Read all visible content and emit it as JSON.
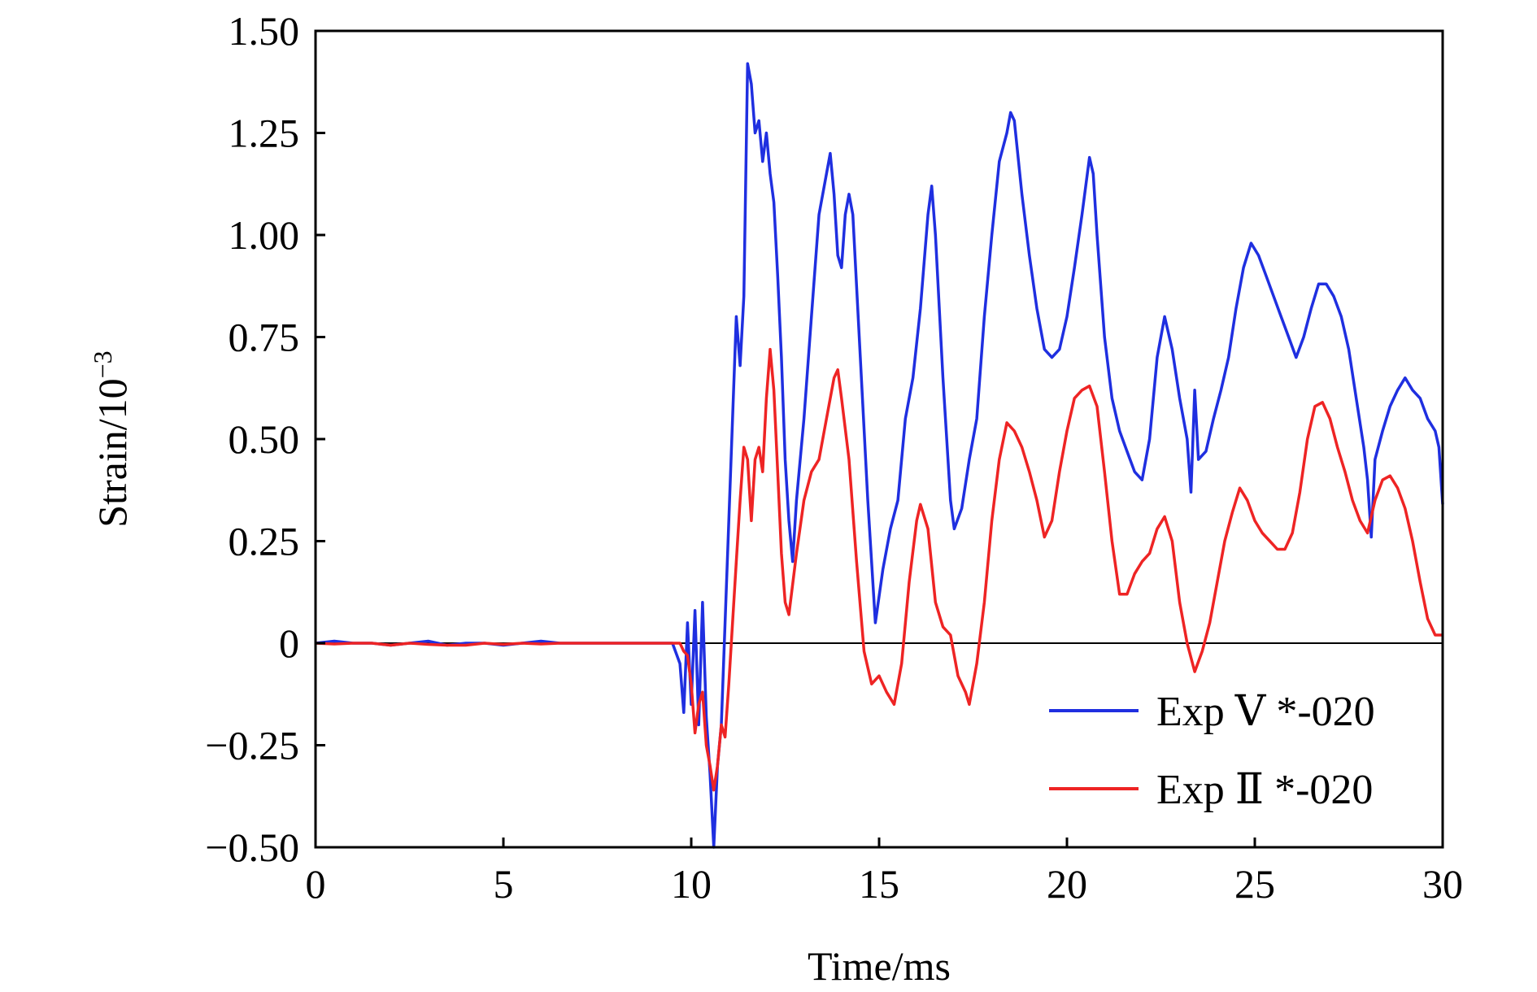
{
  "chart_data": {
    "type": "line",
    "title": "",
    "xlabel": "Time/ms",
    "ylabel": "Strain/10",
    "ylabel_exponent": "−3",
    "xlim": [
      0,
      30
    ],
    "ylim": [
      -0.5,
      1.5
    ],
    "x_ticks": [
      0,
      5,
      10,
      15,
      20,
      25,
      30
    ],
    "x_tick_labels": [
      "0",
      "5",
      "10",
      "15",
      "20",
      "25",
      "30"
    ],
    "y_ticks": [
      -0.5,
      -0.25,
      0,
      0.25,
      0.5,
      0.75,
      1.0,
      1.25,
      1.5
    ],
    "y_tick_labels": [
      "−0.50",
      "−0.25",
      "0",
      "0.25",
      "0.50",
      "0.75",
      "1.00",
      "1.25",
      "1.50"
    ],
    "grid": false,
    "legend_position": "bottom-right",
    "series": [
      {
        "name": "Exp Ⅴ *-020",
        "color": "#1f2fe0",
        "points": [
          [
            0,
            0
          ],
          [
            0.5,
            0.005
          ],
          [
            1,
            0
          ],
          [
            1.5,
            0
          ],
          [
            2,
            -0.005
          ],
          [
            2.5,
            0
          ],
          [
            3,
            0.005
          ],
          [
            3.5,
            -0.005
          ],
          [
            4,
            0
          ],
          [
            4.5,
            0
          ],
          [
            5,
            -0.005
          ],
          [
            5.5,
            0
          ],
          [
            6,
            0.005
          ],
          [
            6.5,
            0
          ],
          [
            7,
            0
          ],
          [
            7.5,
            0
          ],
          [
            8,
            0
          ],
          [
            8.5,
            0
          ],
          [
            9,
            0
          ],
          [
            9.5,
            0
          ],
          [
            9.7,
            -0.05
          ],
          [
            9.8,
            -0.17
          ],
          [
            9.9,
            0.05
          ],
          [
            10.0,
            -0.15
          ],
          [
            10.1,
            0.08
          ],
          [
            10.2,
            -0.2
          ],
          [
            10.3,
            0.1
          ],
          [
            10.4,
            -0.18
          ],
          [
            10.5,
            -0.32
          ],
          [
            10.6,
            -0.5
          ],
          [
            10.7,
            -0.3
          ],
          [
            10.8,
            -0.2
          ],
          [
            10.9,
            0.05
          ],
          [
            11.0,
            0.3
          ],
          [
            11.1,
            0.55
          ],
          [
            11.2,
            0.8
          ],
          [
            11.3,
            0.68
          ],
          [
            11.4,
            0.85
          ],
          [
            11.5,
            1.42
          ],
          [
            11.6,
            1.37
          ],
          [
            11.7,
            1.25
          ],
          [
            11.8,
            1.28
          ],
          [
            11.9,
            1.18
          ],
          [
            12.0,
            1.25
          ],
          [
            12.1,
            1.15
          ],
          [
            12.2,
            1.08
          ],
          [
            12.3,
            0.9
          ],
          [
            12.4,
            0.7
          ],
          [
            12.5,
            0.45
          ],
          [
            12.6,
            0.3
          ],
          [
            12.7,
            0.2
          ],
          [
            12.8,
            0.35
          ],
          [
            13.0,
            0.55
          ],
          [
            13.2,
            0.8
          ],
          [
            13.4,
            1.05
          ],
          [
            13.6,
            1.15
          ],
          [
            13.7,
            1.2
          ],
          [
            13.8,
            1.1
          ],
          [
            13.9,
            0.95
          ],
          [
            14.0,
            0.92
          ],
          [
            14.1,
            1.05
          ],
          [
            14.2,
            1.1
          ],
          [
            14.3,
            1.05
          ],
          [
            14.5,
            0.7
          ],
          [
            14.7,
            0.35
          ],
          [
            14.9,
            0.05
          ],
          [
            15.1,
            0.18
          ],
          [
            15.3,
            0.28
          ],
          [
            15.5,
            0.35
          ],
          [
            15.7,
            0.55
          ],
          [
            15.9,
            0.65
          ],
          [
            16.1,
            0.82
          ],
          [
            16.3,
            1.05
          ],
          [
            16.4,
            1.12
          ],
          [
            16.5,
            1.0
          ],
          [
            16.7,
            0.65
          ],
          [
            16.9,
            0.35
          ],
          [
            17.0,
            0.28
          ],
          [
            17.2,
            0.33
          ],
          [
            17.4,
            0.45
          ],
          [
            17.6,
            0.55
          ],
          [
            17.8,
            0.8
          ],
          [
            18.0,
            1.0
          ],
          [
            18.2,
            1.18
          ],
          [
            18.4,
            1.25
          ],
          [
            18.5,
            1.3
          ],
          [
            18.6,
            1.28
          ],
          [
            18.8,
            1.1
          ],
          [
            19.0,
            0.95
          ],
          [
            19.2,
            0.82
          ],
          [
            19.4,
            0.72
          ],
          [
            19.6,
            0.7
          ],
          [
            19.8,
            0.72
          ],
          [
            20.0,
            0.8
          ],
          [
            20.2,
            0.92
          ],
          [
            20.4,
            1.05
          ],
          [
            20.6,
            1.19
          ],
          [
            20.7,
            1.15
          ],
          [
            20.8,
            1.0
          ],
          [
            21.0,
            0.75
          ],
          [
            21.2,
            0.6
          ],
          [
            21.4,
            0.52
          ],
          [
            21.6,
            0.47
          ],
          [
            21.8,
            0.42
          ],
          [
            22.0,
            0.4
          ],
          [
            22.2,
            0.5
          ],
          [
            22.4,
            0.7
          ],
          [
            22.6,
            0.8
          ],
          [
            22.8,
            0.72
          ],
          [
            23.0,
            0.6
          ],
          [
            23.2,
            0.5
          ],
          [
            23.3,
            0.37
          ],
          [
            23.4,
            0.62
          ],
          [
            23.5,
            0.45
          ],
          [
            23.7,
            0.47
          ],
          [
            23.9,
            0.55
          ],
          [
            24.1,
            0.62
          ],
          [
            24.3,
            0.7
          ],
          [
            24.5,
            0.82
          ],
          [
            24.7,
            0.92
          ],
          [
            24.9,
            0.98
          ],
          [
            25.1,
            0.95
          ],
          [
            25.3,
            0.9
          ],
          [
            25.5,
            0.85
          ],
          [
            25.7,
            0.8
          ],
          [
            25.9,
            0.75
          ],
          [
            26.1,
            0.7
          ],
          [
            26.3,
            0.75
          ],
          [
            26.5,
            0.82
          ],
          [
            26.7,
            0.88
          ],
          [
            26.9,
            0.88
          ],
          [
            27.1,
            0.85
          ],
          [
            27.3,
            0.8
          ],
          [
            27.5,
            0.72
          ],
          [
            27.7,
            0.6
          ],
          [
            27.9,
            0.48
          ],
          [
            28.0,
            0.4
          ],
          [
            28.1,
            0.26
          ],
          [
            28.2,
            0.45
          ],
          [
            28.4,
            0.52
          ],
          [
            28.6,
            0.58
          ],
          [
            28.8,
            0.62
          ],
          [
            29.0,
            0.65
          ],
          [
            29.2,
            0.62
          ],
          [
            29.4,
            0.6
          ],
          [
            29.6,
            0.55
          ],
          [
            29.8,
            0.52
          ],
          [
            29.9,
            0.48
          ],
          [
            30.0,
            0.34
          ]
        ]
      },
      {
        "name": "Exp Ⅱ *-020",
        "color": "#ee2424",
        "points": [
          [
            0,
            0
          ],
          [
            0.5,
            -0.002
          ],
          [
            1,
            0
          ],
          [
            1.5,
            0
          ],
          [
            2,
            -0.005
          ],
          [
            2.5,
            0
          ],
          [
            3,
            -0.003
          ],
          [
            3.5,
            -0.005
          ],
          [
            4,
            -0.005
          ],
          [
            4.5,
            0
          ],
          [
            5,
            -0.003
          ],
          [
            5.5,
            0
          ],
          [
            6,
            -0.002
          ],
          [
            6.5,
            0
          ],
          [
            7,
            0
          ],
          [
            7.5,
            0
          ],
          [
            8,
            0
          ],
          [
            8.5,
            0
          ],
          [
            9,
            0
          ],
          [
            9.5,
            0
          ],
          [
            9.7,
            0
          ],
          [
            9.8,
            -0.02
          ],
          [
            9.9,
            -0.03
          ],
          [
            10.0,
            -0.1
          ],
          [
            10.1,
            -0.22
          ],
          [
            10.2,
            -0.15
          ],
          [
            10.3,
            -0.12
          ],
          [
            10.4,
            -0.25
          ],
          [
            10.5,
            -0.3
          ],
          [
            10.6,
            -0.36
          ],
          [
            10.7,
            -0.3
          ],
          [
            10.8,
            -0.2
          ],
          [
            10.9,
            -0.23
          ],
          [
            11.0,
            -0.1
          ],
          [
            11.1,
            0.05
          ],
          [
            11.2,
            0.2
          ],
          [
            11.3,
            0.35
          ],
          [
            11.4,
            0.48
          ],
          [
            11.5,
            0.45
          ],
          [
            11.6,
            0.3
          ],
          [
            11.7,
            0.45
          ],
          [
            11.8,
            0.48
          ],
          [
            11.9,
            0.42
          ],
          [
            12.0,
            0.6
          ],
          [
            12.1,
            0.72
          ],
          [
            12.2,
            0.62
          ],
          [
            12.3,
            0.42
          ],
          [
            12.4,
            0.22
          ],
          [
            12.5,
            0.1
          ],
          [
            12.6,
            0.07
          ],
          [
            12.8,
            0.22
          ],
          [
            13.0,
            0.35
          ],
          [
            13.2,
            0.42
          ],
          [
            13.4,
            0.45
          ],
          [
            13.6,
            0.55
          ],
          [
            13.8,
            0.65
          ],
          [
            13.9,
            0.67
          ],
          [
            14.0,
            0.6
          ],
          [
            14.2,
            0.45
          ],
          [
            14.4,
            0.2
          ],
          [
            14.6,
            -0.02
          ],
          [
            14.8,
            -0.1
          ],
          [
            15.0,
            -0.08
          ],
          [
            15.2,
            -0.12
          ],
          [
            15.4,
            -0.15
          ],
          [
            15.6,
            -0.05
          ],
          [
            15.8,
            0.15
          ],
          [
            16.0,
            0.3
          ],
          [
            16.1,
            0.34
          ],
          [
            16.3,
            0.28
          ],
          [
            16.5,
            0.1
          ],
          [
            16.7,
            0.04
          ],
          [
            16.9,
            0.02
          ],
          [
            17.1,
            -0.08
          ],
          [
            17.3,
            -0.12
          ],
          [
            17.4,
            -0.15
          ],
          [
            17.6,
            -0.05
          ],
          [
            17.8,
            0.1
          ],
          [
            18.0,
            0.3
          ],
          [
            18.2,
            0.45
          ],
          [
            18.4,
            0.54
          ],
          [
            18.6,
            0.52
          ],
          [
            18.8,
            0.48
          ],
          [
            19.0,
            0.42
          ],
          [
            19.2,
            0.35
          ],
          [
            19.4,
            0.26
          ],
          [
            19.6,
            0.3
          ],
          [
            19.8,
            0.42
          ],
          [
            20.0,
            0.52
          ],
          [
            20.2,
            0.6
          ],
          [
            20.4,
            0.62
          ],
          [
            20.6,
            0.63
          ],
          [
            20.8,
            0.58
          ],
          [
            21.0,
            0.42
          ],
          [
            21.2,
            0.25
          ],
          [
            21.4,
            0.12
          ],
          [
            21.6,
            0.12
          ],
          [
            21.8,
            0.17
          ],
          [
            22.0,
            0.2
          ],
          [
            22.2,
            0.22
          ],
          [
            22.4,
            0.28
          ],
          [
            22.6,
            0.31
          ],
          [
            22.8,
            0.25
          ],
          [
            23.0,
            0.1
          ],
          [
            23.2,
            0.0
          ],
          [
            23.4,
            -0.07
          ],
          [
            23.6,
            -0.02
          ],
          [
            23.8,
            0.05
          ],
          [
            24.0,
            0.15
          ],
          [
            24.2,
            0.25
          ],
          [
            24.4,
            0.32
          ],
          [
            24.6,
            0.38
          ],
          [
            24.8,
            0.35
          ],
          [
            25.0,
            0.3
          ],
          [
            25.2,
            0.27
          ],
          [
            25.4,
            0.25
          ],
          [
            25.6,
            0.23
          ],
          [
            25.8,
            0.23
          ],
          [
            26.0,
            0.27
          ],
          [
            26.2,
            0.37
          ],
          [
            26.4,
            0.5
          ],
          [
            26.6,
            0.58
          ],
          [
            26.8,
            0.59
          ],
          [
            27.0,
            0.55
          ],
          [
            27.2,
            0.48
          ],
          [
            27.4,
            0.42
          ],
          [
            27.6,
            0.35
          ],
          [
            27.8,
            0.3
          ],
          [
            28.0,
            0.27
          ],
          [
            28.2,
            0.35
          ],
          [
            28.4,
            0.4
          ],
          [
            28.6,
            0.41
          ],
          [
            28.8,
            0.38
          ],
          [
            29.0,
            0.33
          ],
          [
            29.2,
            0.25
          ],
          [
            29.4,
            0.15
          ],
          [
            29.6,
            0.06
          ],
          [
            29.8,
            0.02
          ],
          [
            30.0,
            0.02
          ]
        ]
      }
    ]
  }
}
